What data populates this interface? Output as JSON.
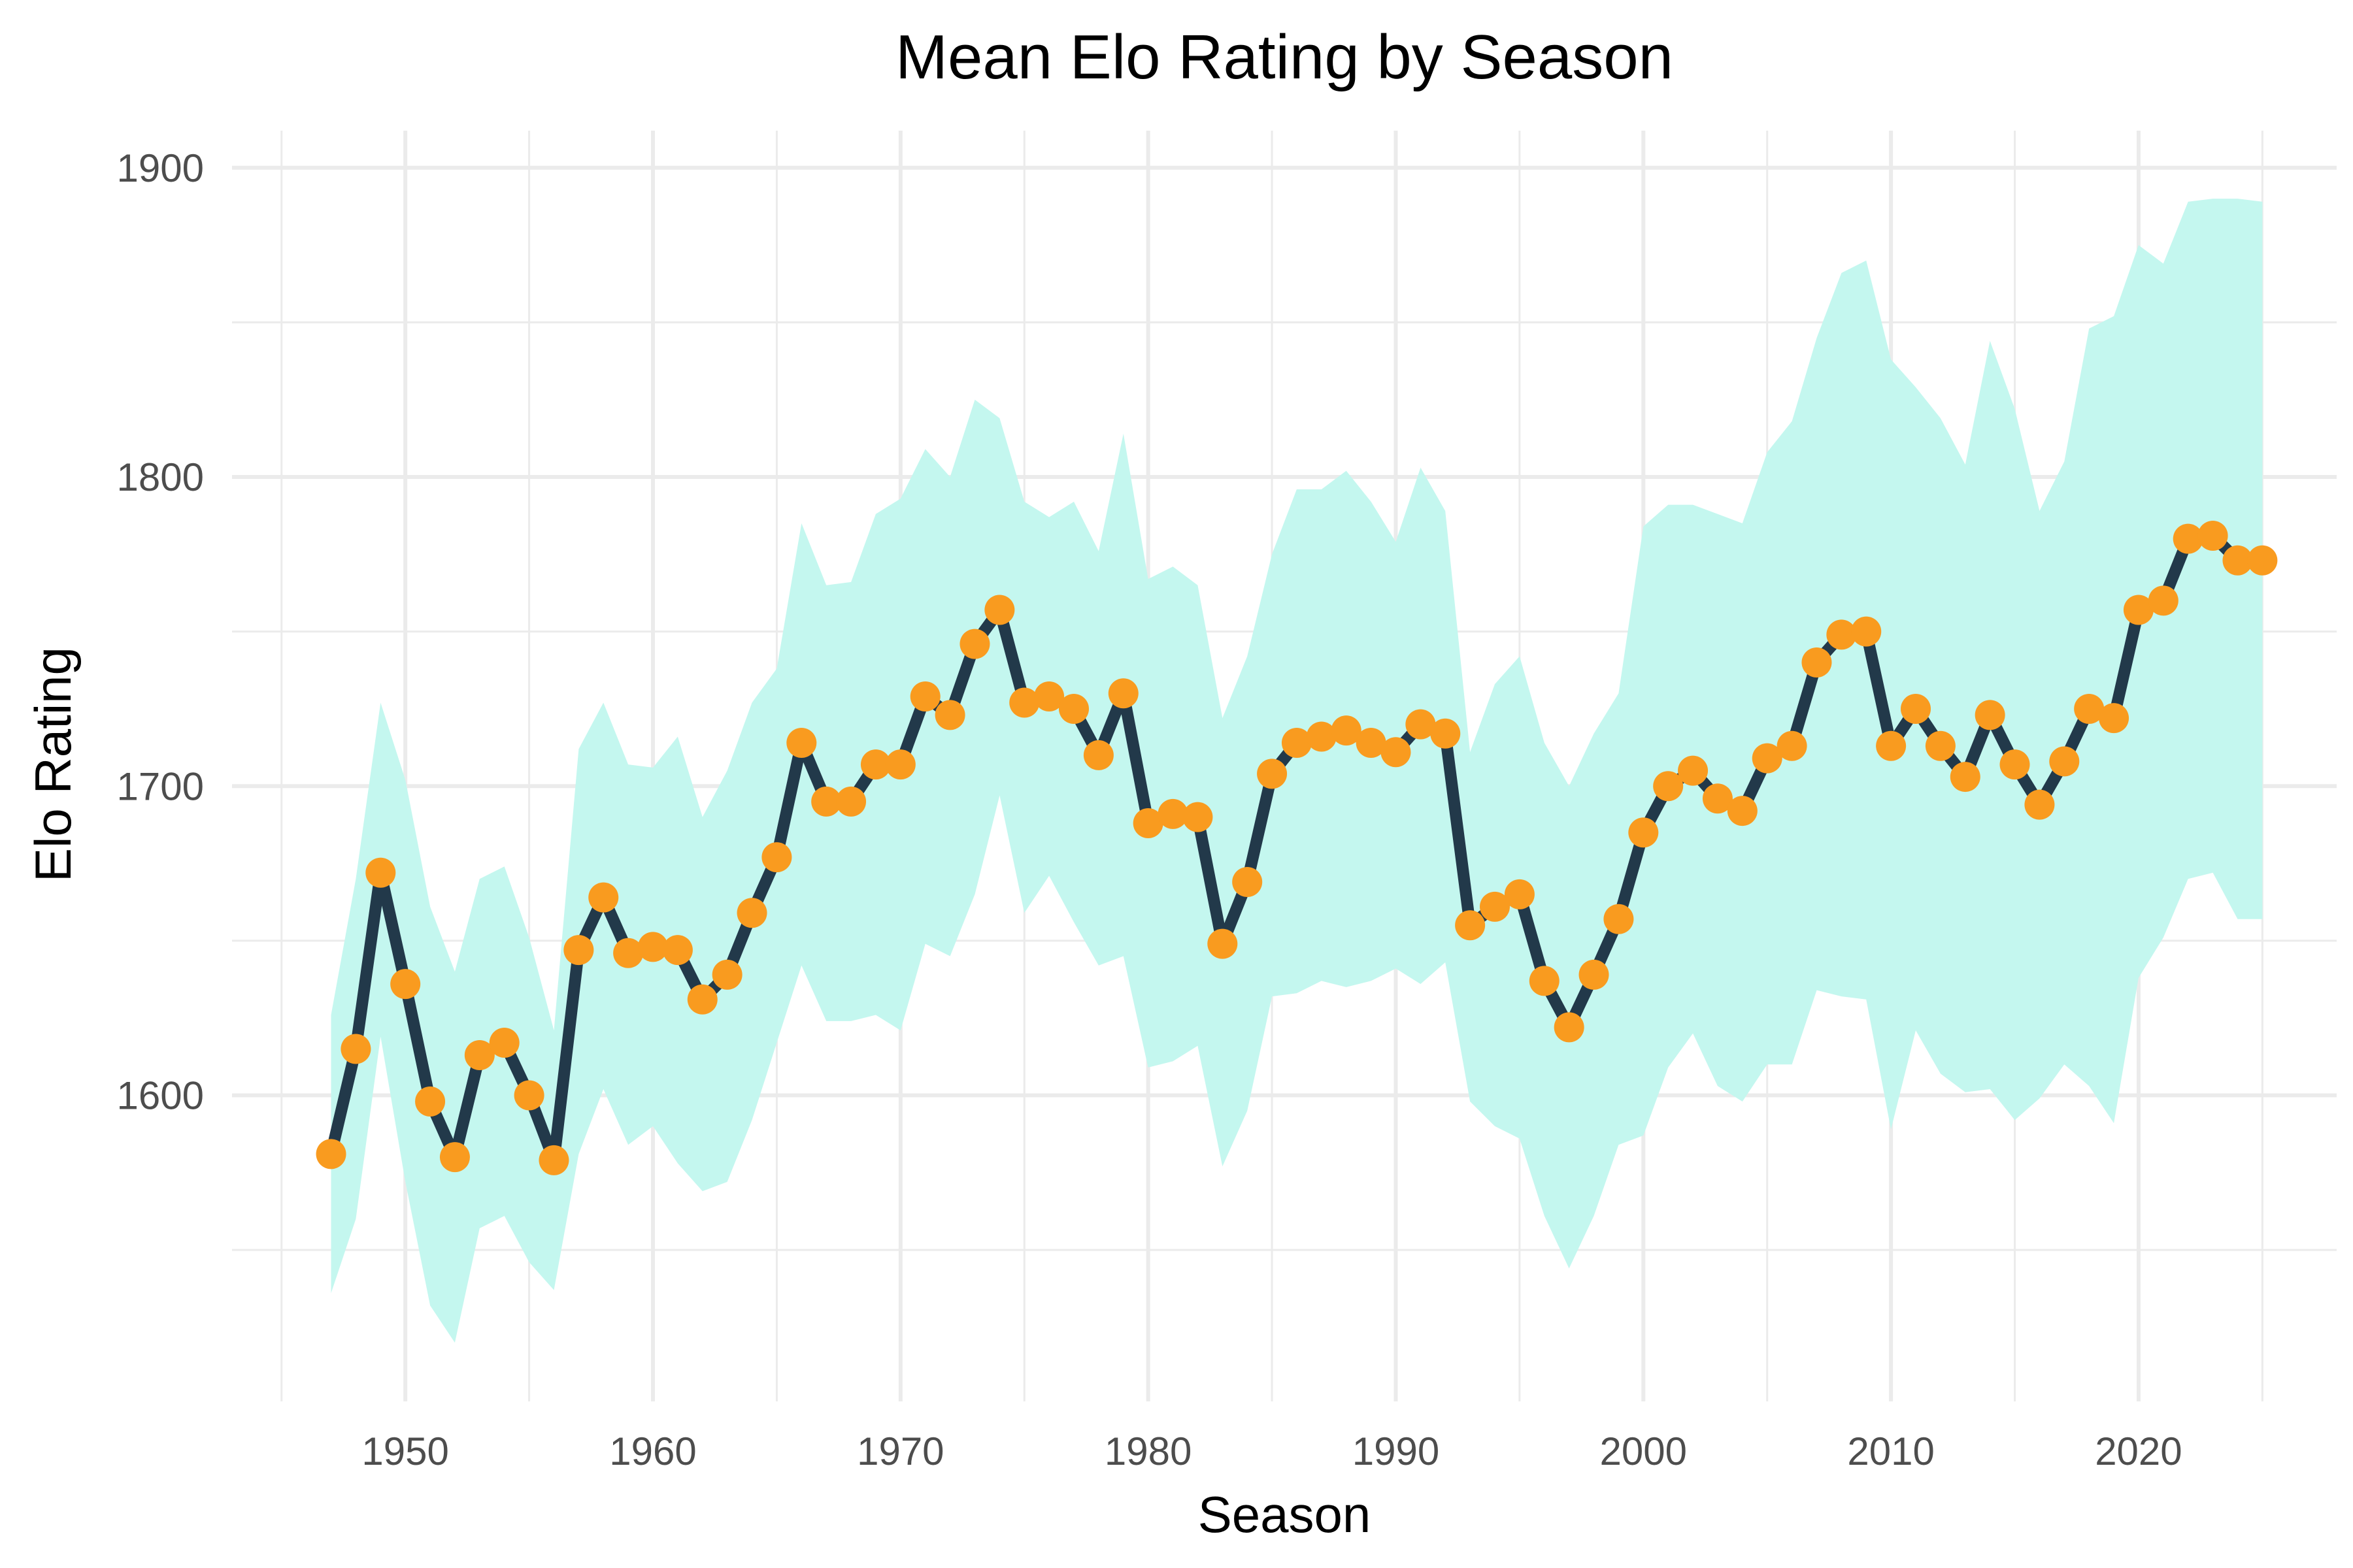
{
  "chart_data": {
    "type": "line",
    "title": "Mean Elo Rating by Season",
    "xlabel": "Season",
    "ylabel": "Elo Rating",
    "xlim": [
      1943,
      2028
    ],
    "ylim": [
      1501,
      1912
    ],
    "x_ticks": [
      1950,
      1960,
      1970,
      1980,
      1990,
      2000,
      2010,
      2020
    ],
    "y_ticks": [
      1600,
      1700,
      1800,
      1900
    ],
    "grid": true,
    "legend": "none",
    "colors": {
      "line": "#22394a",
      "points": "#f99b1f",
      "band": "#c4f7ef"
    },
    "x": [
      1947,
      1948,
      1949,
      1950,
      1951,
      1952,
      1953,
      1954,
      1955,
      1956,
      1957,
      1958,
      1959,
      1960,
      1961,
      1962,
      1963,
      1964,
      1965,
      1966,
      1967,
      1968,
      1969,
      1970,
      1971,
      1972,
      1973,
      1974,
      1975,
      1976,
      1977,
      1978,
      1979,
      1980,
      1981,
      1982,
      1983,
      1984,
      1985,
      1986,
      1987,
      1988,
      1989,
      1990,
      1991,
      1992,
      1993,
      1994,
      1995,
      1996,
      1997,
      1998,
      1999,
      2000,
      2001,
      2002,
      2003,
      2004,
      2005,
      2006,
      2007,
      2008,
      2009,
      2010,
      2011,
      2012,
      2013,
      2014,
      2015,
      2016,
      2017,
      2018,
      2019,
      2020,
      2021,
      2022,
      2023,
      2024,
      2025
    ],
    "series": [
      {
        "values": [
          1581,
          1615,
          1672,
          1636,
          1598,
          1580,
          1613,
          1617,
          1600,
          1579,
          1647,
          1664,
          1646,
          1648,
          1647,
          1631,
          1639,
          1659,
          1677,
          1714,
          1695,
          1695,
          1707,
          1707,
          1729,
          1723,
          1746,
          1757,
          1727,
          1729,
          1725,
          1710,
          1730,
          1688,
          1691,
          1690,
          1649,
          1669,
          1704,
          1714,
          1716,
          1718,
          1714,
          1711,
          1720,
          1717,
          1655,
          1661,
          1665,
          1637,
          1622,
          1639,
          1657,
          1685,
          1700,
          1705,
          1696,
          1692,
          1709,
          1713,
          1740,
          1749,
          1750,
          1713,
          1725,
          1713,
          1703,
          1723,
          1707,
          1694,
          1708,
          1725,
          1722,
          1757,
          1760,
          1780,
          1781,
          1773,
          1773
        ]
      }
    ],
    "band": {
      "lower": [
        1536,
        1560,
        1619,
        1572,
        1532,
        1520,
        1557,
        1561,
        1546,
        1537,
        1581,
        1602,
        1584,
        1590,
        1578,
        1569,
        1572,
        1592,
        1617,
        1642,
        1624,
        1624,
        1626,
        1621,
        1649,
        1645,
        1665,
        1697,
        1659,
        1671,
        1656,
        1642,
        1645,
        1609,
        1611,
        1616,
        1577,
        1595,
        1632,
        1633,
        1637,
        1635,
        1637,
        1641,
        1636,
        1643,
        1598,
        1590,
        1586,
        1561,
        1544,
        1561,
        1584,
        1587,
        1609,
        1620,
        1603,
        1598,
        1610,
        1610,
        1634,
        1632,
        1631,
        1589,
        1621,
        1607,
        1601,
        1602,
        1592,
        1599,
        1610,
        1603,
        1591,
        1638,
        1651,
        1670,
        1672,
        1657,
        1657
      ],
      "upper": [
        1626,
        1670,
        1727,
        1702,
        1661,
        1640,
        1670,
        1674,
        1651,
        1621,
        1712,
        1727,
        1707,
        1706,
        1716,
        1690,
        1705,
        1727,
        1738,
        1785,
        1765,
        1766,
        1788,
        1793,
        1809,
        1800,
        1825,
        1819,
        1792,
        1787,
        1792,
        1776,
        1814,
        1767,
        1771,
        1765,
        1722,
        1742,
        1775,
        1796,
        1796,
        1802,
        1792,
        1779,
        1803,
        1789,
        1711,
        1733,
        1742,
        1714,
        1700,
        1717,
        1730,
        1784,
        1791,
        1791,
        1788,
        1785,
        1808,
        1818,
        1845,
        1866,
        1870,
        1838,
        1829,
        1819,
        1804,
        1844,
        1822,
        1789,
        1805,
        1848,
        1852,
        1875,
        1869,
        1889,
        1890,
        1890,
        1889
      ]
    }
  }
}
